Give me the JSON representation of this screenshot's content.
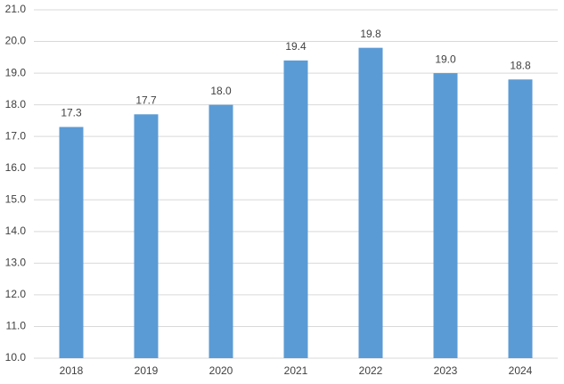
{
  "chart_data": {
    "type": "bar",
    "categories": [
      "2018",
      "2019",
      "2020",
      "2021",
      "2022",
      "2023",
      "2024"
    ],
    "values": [
      17.3,
      17.7,
      18.0,
      19.4,
      19.8,
      19.0,
      18.8
    ],
    "value_labels": [
      "17.3",
      "17.7",
      "18.0",
      "19.4",
      "19.8",
      "19.0",
      "18.8"
    ],
    "color": "#5b9bd5",
    "ylim": [
      10,
      21
    ],
    "yticks": [
      {
        "value": 10,
        "label": "10.0"
      },
      {
        "value": 11,
        "label": "11.0"
      },
      {
        "value": 12,
        "label": "12.0"
      },
      {
        "value": 13,
        "label": "13.0"
      },
      {
        "value": 14,
        "label": "14.0"
      },
      {
        "value": 15,
        "label": "15.0"
      },
      {
        "value": 16,
        "label": "16.0"
      },
      {
        "value": 17,
        "label": "17.0"
      },
      {
        "value": 18,
        "label": "18.0"
      },
      {
        "value": 19,
        "label": "19.0"
      },
      {
        "value": 20,
        "label": "20.0"
      },
      {
        "value": 21,
        "label": "21.0"
      }
    ],
    "grid": true
  }
}
